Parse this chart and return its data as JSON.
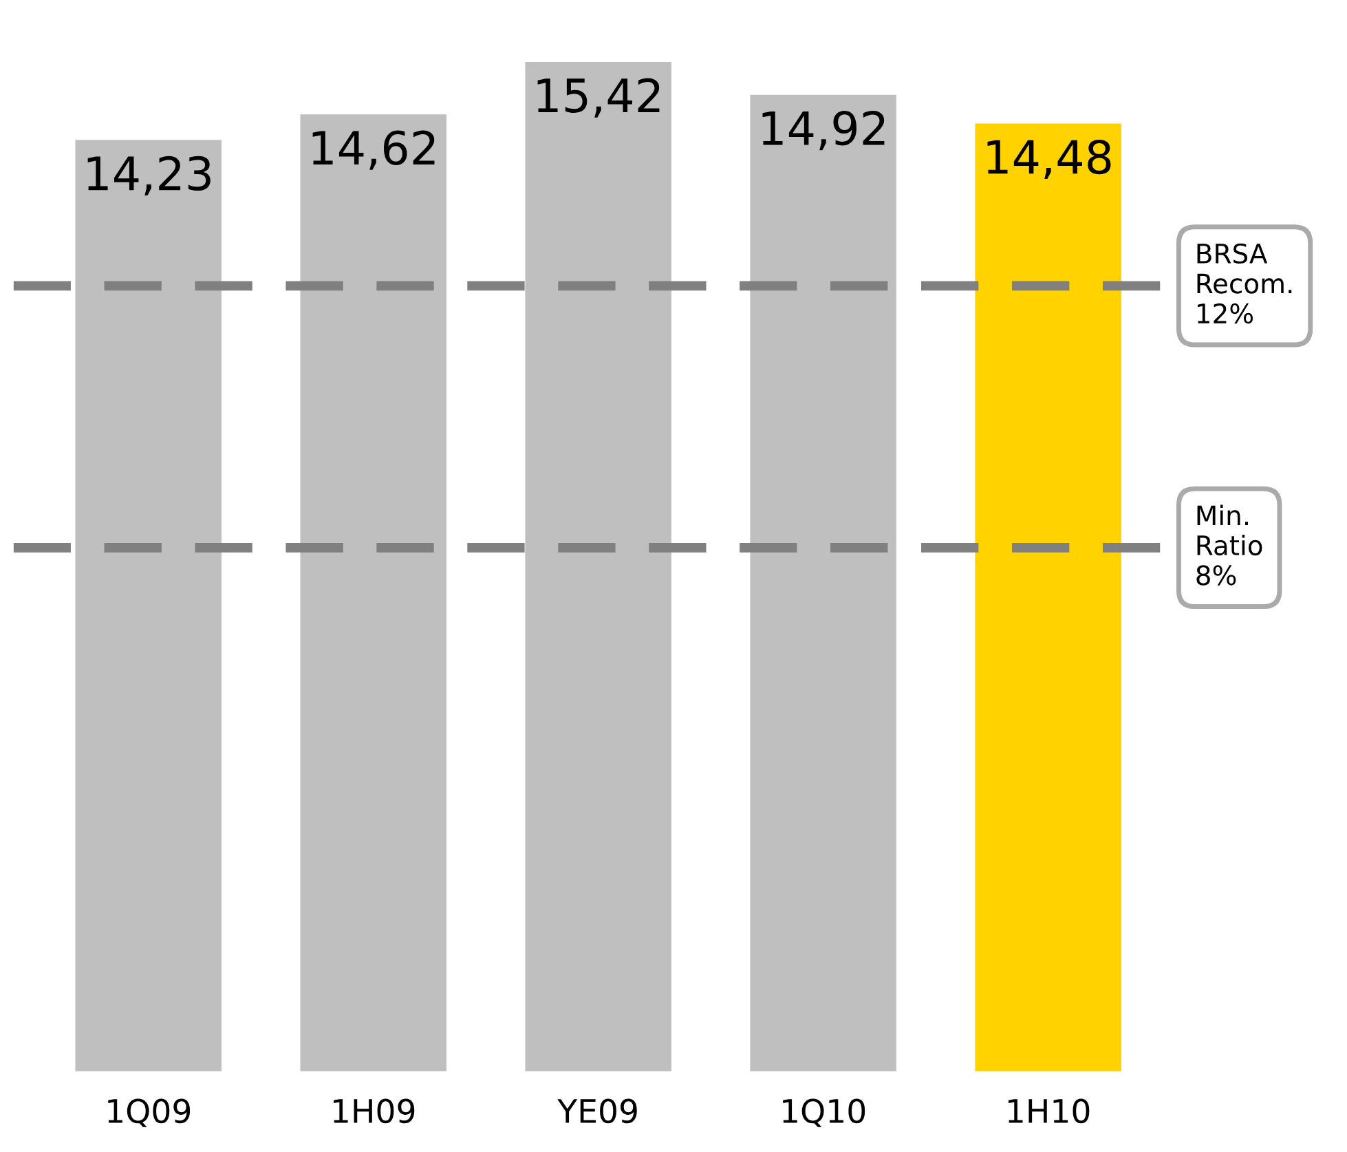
{
  "chart_data": {
    "type": "bar",
    "categories": [
      "1Q09",
      "1H09",
      "YE09",
      "1Q10",
      "1H10"
    ],
    "values": [
      14.23,
      14.62,
      15.42,
      14.92,
      14.48
    ],
    "colors": [
      "#bfbfbf",
      "#bfbfbf",
      "#bfbfbf",
      "#bfbfbf",
      "#ffd200"
    ],
    "value_labels": [
      "14,23",
      "14,62",
      "15,42",
      "14,92",
      "14,48"
    ],
    "ref_lines": [
      {
        "axis": "y",
        "value": 12,
        "label": "BRSA\nRecom.\n12%",
        "color": "#808080",
        "line_style": "dashed"
      },
      {
        "axis": "y",
        "value": 8,
        "label": "Min.\nRatio\n8%",
        "color": "#808080",
        "line_style": "dashed"
      }
    ],
    "grid": false,
    "legend": false
  }
}
